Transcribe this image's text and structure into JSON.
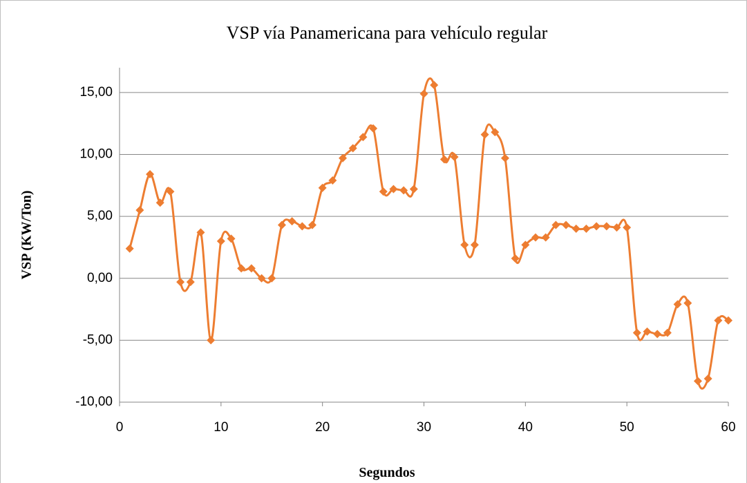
{
  "chart_data": {
    "type": "line",
    "title": "VSP vía Panamericana para vehículo regular",
    "x_label": "Segundos",
    "y_label": "VSP (KW/Ton)",
    "x": [
      1,
      2,
      3,
      4,
      5,
      6,
      7,
      8,
      9,
      10,
      11,
      12,
      13,
      14,
      15,
      16,
      17,
      18,
      19,
      20,
      21,
      22,
      23,
      24,
      25,
      26,
      27,
      28,
      29,
      30,
      31,
      32,
      33,
      34,
      35,
      36,
      37,
      38,
      39,
      40,
      41,
      42,
      43,
      44,
      45,
      46,
      47,
      48,
      49,
      50,
      51,
      52,
      53,
      54,
      55,
      56,
      57,
      58,
      59,
      60
    ],
    "series": [
      {
        "name": "VSP",
        "color": "#ed7d31",
        "values": [
          2.4,
          5.5,
          8.4,
          6.1,
          7.0,
          -0.3,
          -0.3,
          3.7,
          -5.0,
          3.0,
          3.2,
          0.8,
          0.8,
          0.0,
          0.0,
          4.3,
          4.6,
          4.2,
          4.3,
          7.3,
          7.9,
          9.7,
          10.5,
          11.4,
          12.1,
          7.0,
          7.2,
          7.1,
          7.2,
          14.9,
          15.6,
          9.6,
          9.8,
          2.7,
          2.7,
          11.6,
          11.8,
          9.7,
          1.6,
          2.7,
          3.3,
          3.3,
          4.3,
          4.3,
          4.0,
          4.0,
          4.2,
          4.2,
          4.1,
          4.1,
          -4.4,
          -4.3,
          -4.5,
          -4.4,
          -2.1,
          -2.0,
          -8.3,
          -8.1,
          -3.4,
          -3.4
        ]
      }
    ],
    "xlim": [
      0,
      60
    ],
    "xticks": [
      0,
      10,
      20,
      30,
      40,
      50,
      60
    ],
    "ylim": [
      -10,
      17
    ],
    "yticks": [
      {
        "value": -10,
        "label": "-10,00"
      },
      {
        "value": -5,
        "label": "-5,00"
      },
      {
        "value": 0,
        "label": "0,00"
      },
      {
        "value": 5,
        "label": "5,00"
      },
      {
        "value": 10,
        "label": "10,00"
      },
      {
        "value": 15,
        "label": "15,00"
      }
    ],
    "grid": true
  }
}
